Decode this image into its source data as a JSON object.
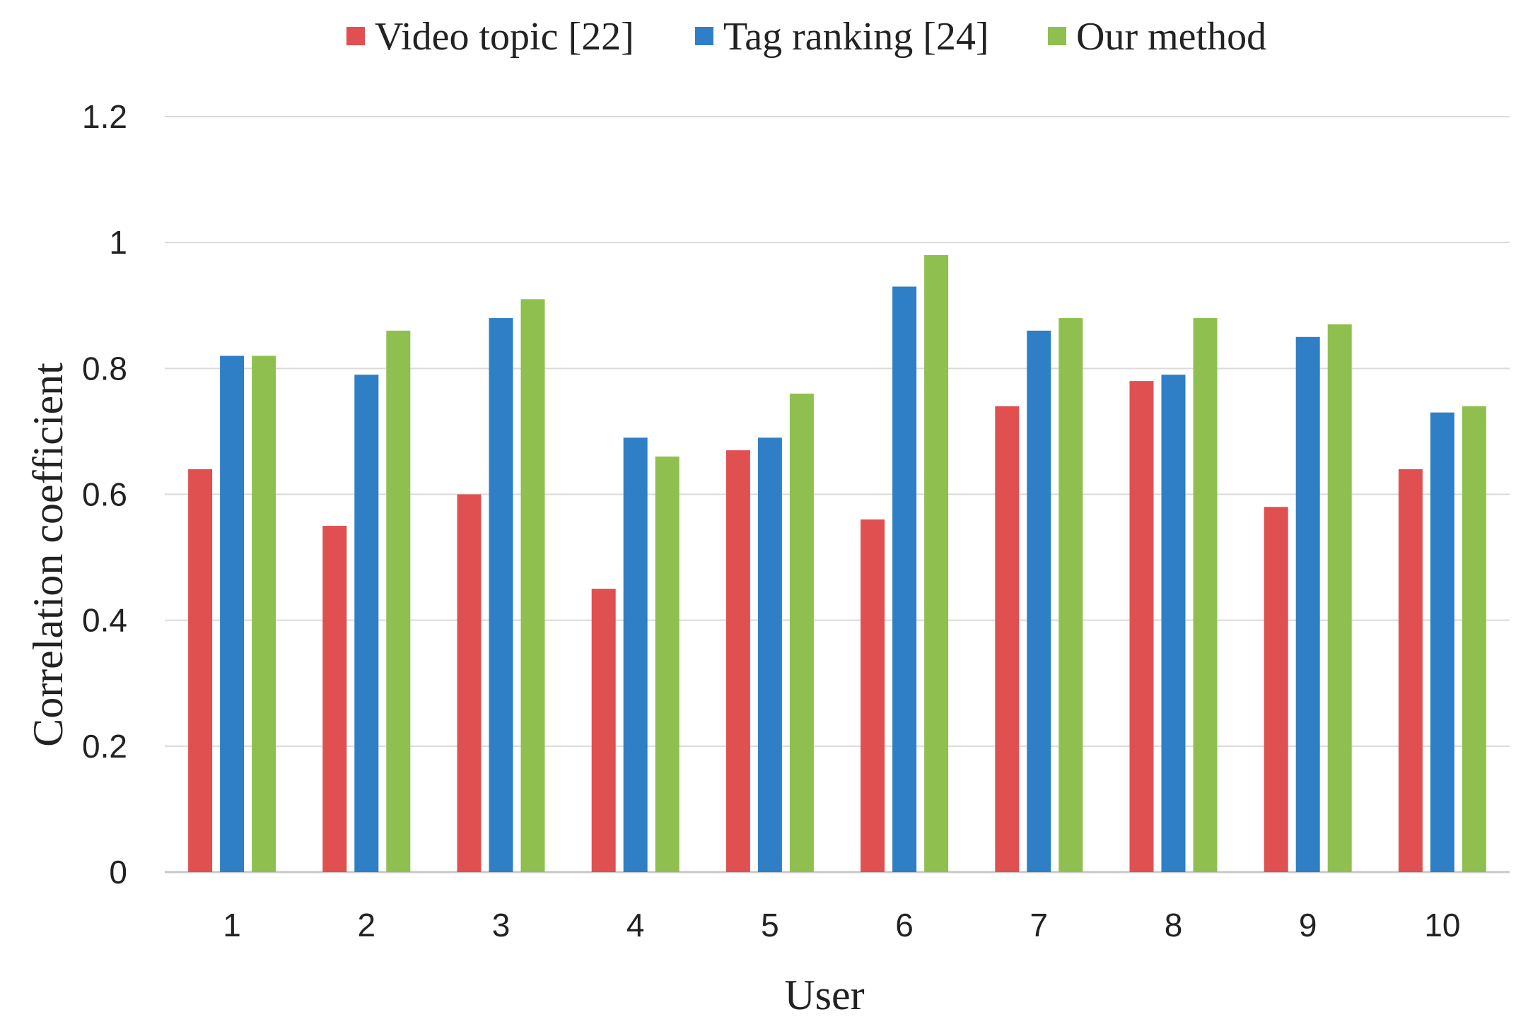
{
  "chart_data": {
    "type": "bar",
    "title": "",
    "xlabel": "User",
    "ylabel": "Correlation coefficient",
    "categories": [
      "1",
      "2",
      "3",
      "4",
      "5",
      "6",
      "7",
      "8",
      "9",
      "10"
    ],
    "series": [
      {
        "name": "Video topic [22]",
        "color": "#e05050",
        "values": [
          0.64,
          0.55,
          0.6,
          0.45,
          0.67,
          0.56,
          0.74,
          0.78,
          0.58,
          0.64
        ]
      },
      {
        "name": "Tag ranking [24]",
        "color": "#2e7fc6",
        "values": [
          0.82,
          0.79,
          0.88,
          0.69,
          0.69,
          0.93,
          0.86,
          0.79,
          0.85,
          0.73
        ]
      },
      {
        "name": "Our method",
        "color": "#8fc04f",
        "values": [
          0.82,
          0.86,
          0.91,
          0.66,
          0.76,
          0.98,
          0.88,
          0.88,
          0.87,
          0.74
        ]
      }
    ],
    "ylim": [
      0,
      1.2
    ],
    "yticks": [
      "0",
      "0.2",
      "0.4",
      "0.6",
      "0.8",
      "1",
      "1.2"
    ],
    "grid": true,
    "legend_position": "top"
  }
}
